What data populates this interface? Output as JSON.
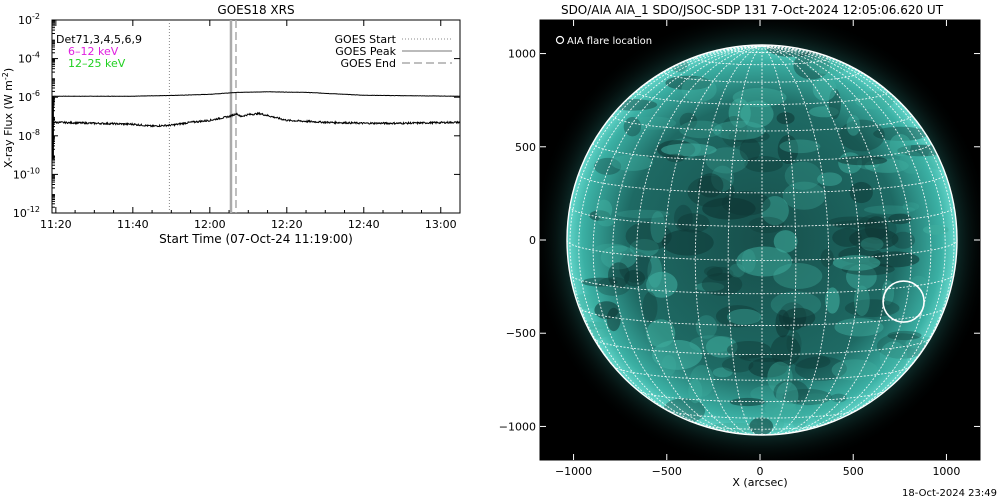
{
  "footer_timestamp": "18-Oct-2024 23:49",
  "chart_data": [
    {
      "type": "line",
      "title": "GOES18 XRS",
      "xlabel": "Start Time (07-Oct-24 11:19:00)",
      "ylabel": "X-ray Flux (W m⁻²)",
      "ylabel_main": "X-ray Flux (W m",
      "ylabel_sup": "-2",
      "ylabel_close": ")",
      "yscale": "log",
      "ylim_exp": [
        -12,
        -2
      ],
      "y_tick_exponents": [
        -12,
        -10,
        -8,
        -6,
        -4,
        -2
      ],
      "x_unit": "minutes",
      "xlim": [
        679,
        785
      ],
      "x_ticks": [
        {
          "t": 680,
          "label": "11:20"
        },
        {
          "t": 700,
          "label": "11:40"
        },
        {
          "t": 720,
          "label": "12:00"
        },
        {
          "t": 740,
          "label": "12:20"
        },
        {
          "t": 760,
          "label": "12:40"
        },
        {
          "t": 780,
          "label": "13:00"
        }
      ],
      "detector_label": "Det71,3,4,5,6,9",
      "channel_labels": [
        {
          "text": "6–12 keV",
          "color": "#e020e0"
        },
        {
          "text": "12–25 keV",
          "color": "#20d020"
        }
      ],
      "legend": [
        {
          "name": "GOES Start",
          "style": "dotted"
        },
        {
          "name": "GOES Peak",
          "style": "solid"
        },
        {
          "name": "GOES End",
          "style": "dashed"
        }
      ],
      "markers": {
        "goes_start": 709.5,
        "goes_peak": 725.5,
        "goes_end": 726.8
      },
      "series": [
        {
          "name": "upper",
          "x": [
            679,
            700,
            712,
            720,
            727,
            735,
            745,
            760,
            785
          ],
          "log_values": [
            -5.95,
            -5.95,
            -5.9,
            -5.85,
            -5.75,
            -5.72,
            -5.75,
            -5.9,
            -5.95
          ]
        },
        {
          "name": "lower",
          "x": [
            679,
            690,
            700,
            705,
            710,
            715,
            720,
            725,
            727,
            728,
            730,
            733,
            736,
            740,
            745,
            750,
            760,
            770,
            785
          ],
          "log_values": [
            -7.3,
            -7.35,
            -7.4,
            -7.5,
            -7.45,
            -7.3,
            -7.2,
            -7.0,
            -6.85,
            -7.0,
            -6.9,
            -6.85,
            -7.0,
            -7.2,
            -7.25,
            -7.3,
            -7.35,
            -7.35,
            -7.3
          ]
        }
      ]
    },
    {
      "type": "scatter",
      "title": "SDO/AIA AIA_1 SDO/JSOC-SDP 131  7-Oct-2024 12:05:06.620 UT",
      "xlabel": "X (arcsec)",
      "ylabel": "",
      "xlim": [
        -1180,
        1180
      ],
      "ylim": [
        -1180,
        1180
      ],
      "x_ticks": [
        -1000,
        -500,
        0,
        500,
        1000
      ],
      "y_ticks": [
        -1000,
        -500,
        0,
        500,
        1000
      ],
      "legend": [
        {
          "name": "AIA flare location",
          "symbol": "circle"
        }
      ],
      "colors": {
        "disk": "#1e6a64",
        "background": "#000000",
        "grid": "#ffffff"
      },
      "flare": {
        "x": 770,
        "y": -330,
        "r": 110
      }
    }
  ]
}
